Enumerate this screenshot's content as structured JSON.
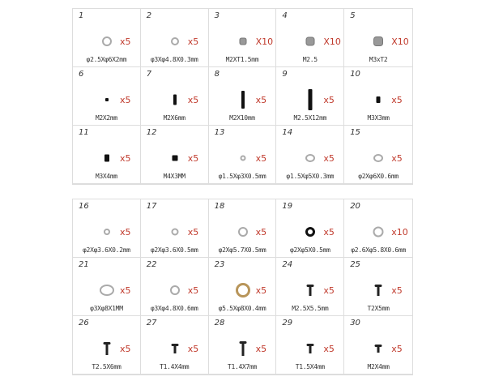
{
  "groups": [
    {
      "items": [
        {
          "num": "1",
          "qty": "x5",
          "label": "φ2.5Xφ6X2mm",
          "icon": "washer-icon"
        },
        {
          "num": "2",
          "qty": "x5",
          "label": "φ3Xφ4.8X0.3mm",
          "icon": "washer-icon"
        },
        {
          "num": "3",
          "qty": "X10",
          "label": "M2XT1.5mm",
          "icon": "nut-icon"
        },
        {
          "num": "4",
          "qty": "X10",
          "label": "M2.5",
          "icon": "nut-icon"
        },
        {
          "num": "5",
          "qty": "X10",
          "label": "M3xT2",
          "icon": "nut-icon"
        },
        {
          "num": "6",
          "qty": "x5",
          "label": "M2X2mm",
          "icon": "set-screw-icon"
        },
        {
          "num": "7",
          "qty": "x5",
          "label": "M2X6mm",
          "icon": "set-screw-icon"
        },
        {
          "num": "8",
          "qty": "x5",
          "label": "M2X10mm",
          "icon": "set-screw-icon"
        },
        {
          "num": "9",
          "qty": "x5",
          "label": "M2.5X12mm",
          "icon": "set-screw-icon"
        },
        {
          "num": "10",
          "qty": "x5",
          "label": "M3X3mm",
          "icon": "set-screw-icon"
        },
        {
          "num": "11",
          "qty": "x5",
          "label": "M3X4mm",
          "icon": "set-screw-icon"
        },
        {
          "num": "12",
          "qty": "x5",
          "label": "M4X3MM",
          "icon": "set-screw-icon"
        },
        {
          "num": "13",
          "qty": "x5",
          "label": "φ1.5Xφ3X0.5mm",
          "icon": "washer-icon"
        },
        {
          "num": "14",
          "qty": "x5",
          "label": "φ1.5Xφ5X0.3mm",
          "icon": "washer-icon"
        },
        {
          "num": "15",
          "qty": "x5",
          "label": "φ2Xφ6X0.6mm",
          "icon": "washer-icon"
        }
      ]
    },
    {
      "items": [
        {
          "num": "16",
          "qty": "x5",
          "label": "φ2Xφ3.6X0.2mm",
          "icon": "washer-icon"
        },
        {
          "num": "17",
          "qty": "x5",
          "label": "φ2Xφ3.6X0.5mm",
          "icon": "washer-icon"
        },
        {
          "num": "18",
          "qty": "x5",
          "label": "φ2Xφ5.7X0.5mm",
          "icon": "washer-icon"
        },
        {
          "num": "19",
          "qty": "x5",
          "label": "φ2Xφ5X0.5mm",
          "icon": "o-ring-icon"
        },
        {
          "num": "20",
          "qty": "x10",
          "label": "φ2.6Xφ5.8X0.6mm",
          "icon": "washer-icon"
        },
        {
          "num": "21",
          "qty": "x5",
          "label": "φ3Xφ8X1MM",
          "icon": "washer-icon"
        },
        {
          "num": "22",
          "qty": "x5",
          "label": "φ3Xφ4.8X0.6mm",
          "icon": "washer-icon"
        },
        {
          "num": "23",
          "qty": "x5",
          "label": "φ5.5Xφ8X0.4mm",
          "icon": "brass-washer-icon"
        },
        {
          "num": "24",
          "qty": "x5",
          "label": "M2.5X5.5mm",
          "icon": "shoulder-screw-icon"
        },
        {
          "num": "25",
          "qty": "x5",
          "label": "T2X5mm",
          "icon": "screw-icon"
        },
        {
          "num": "26",
          "qty": "x5",
          "label": "T2.5X6mm",
          "icon": "screw-icon"
        },
        {
          "num": "27",
          "qty": "x5",
          "label": "T1.4X4mm",
          "icon": "screw-icon"
        },
        {
          "num": "28",
          "qty": "x5",
          "label": "T1.4X7mm",
          "icon": "screw-icon"
        },
        {
          "num": "29",
          "qty": "x5",
          "label": "T1.5X4mm",
          "icon": "screw-icon"
        },
        {
          "num": "30",
          "qty": "x5",
          "label": "M2X4mm",
          "icon": "screw-icon"
        }
      ]
    }
  ],
  "colors": {
    "qty": "#c0392b",
    "border": "#dddddd"
  }
}
